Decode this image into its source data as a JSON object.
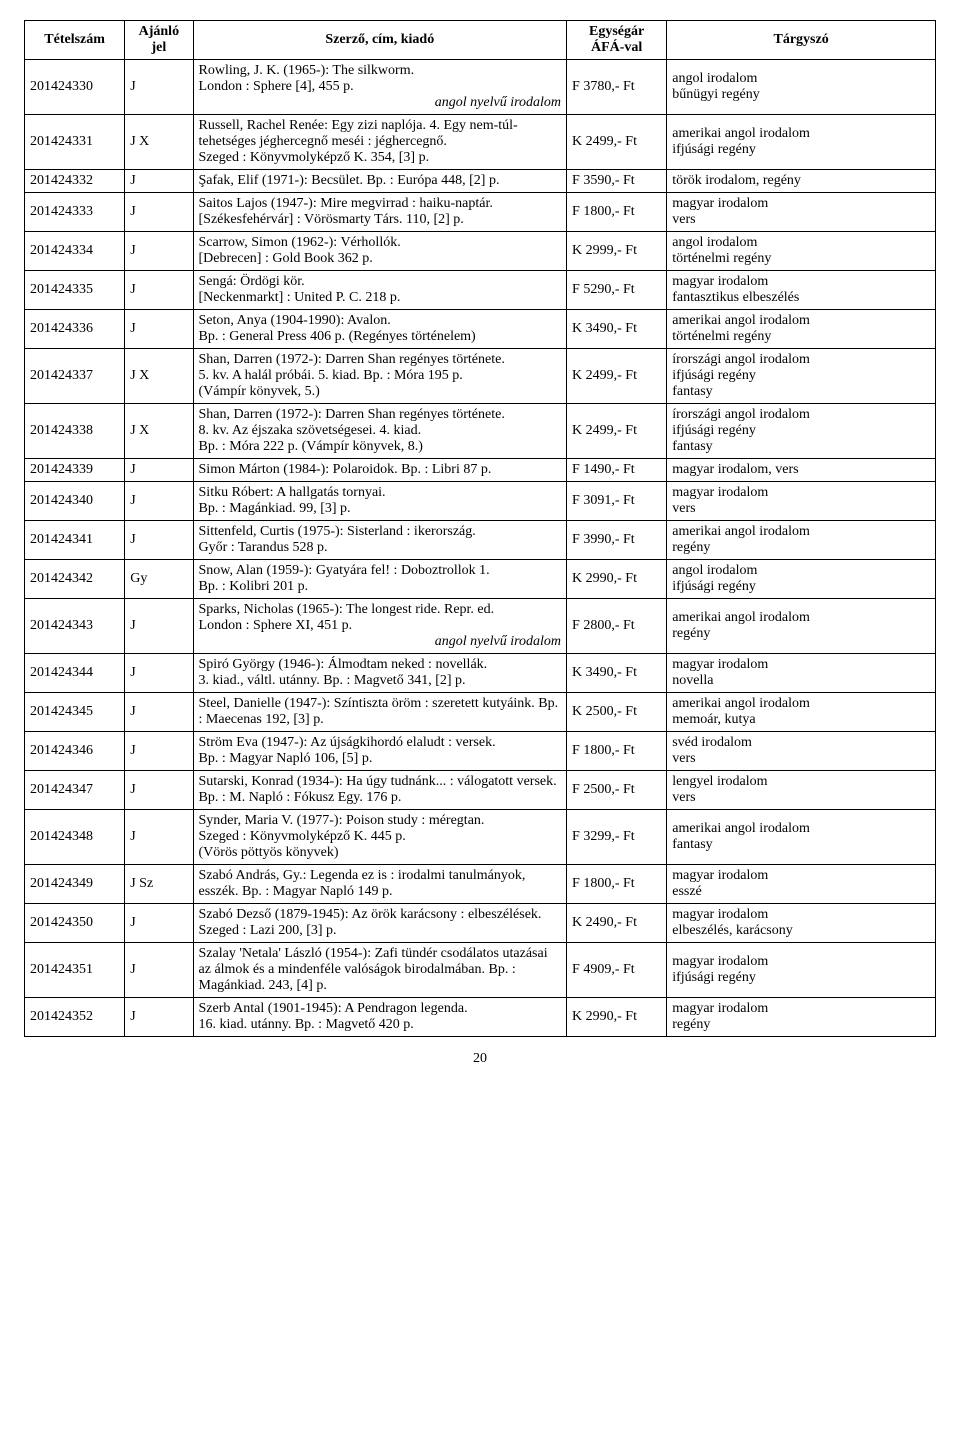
{
  "headers": {
    "id": "Tételszám",
    "code": "Ajánló jel",
    "desc": "Szerző, cím, kiadó",
    "price": "Egységár ÁFÁ-val",
    "tags": "Tárgyszó"
  },
  "rows": [
    {
      "id": "201424330",
      "code": "J",
      "desc": "Rowling, J. K. (1965-): The silkworm.\nLondon : Sphere [4], 455 p.",
      "descSuffix": "angol nyelvű irodalom",
      "price": "F 3780,- Ft",
      "tags": "angol irodalom\nbűnügyi regény"
    },
    {
      "id": "201424331",
      "code": "J X",
      "desc": "Russell, Rachel Renée: Egy zizi naplója. 4. Egy nem-túl-tehetséges jéghercegnő meséi : jéghercegnő.\nSzeged : Könyvmolyképző K. 354, [3] p.",
      "price": "K 2499,- Ft",
      "tags": "amerikai angol irodalom\nifjúsági regény"
    },
    {
      "id": "201424332",
      "code": "J",
      "desc": "Şafak, Elif (1971-): Becsület. Bp. : Európa 448, [2] p.",
      "price": "F 3590,- Ft",
      "tags": "török irodalom, regény"
    },
    {
      "id": "201424333",
      "code": "J",
      "desc": "Saitos Lajos (1947-): Mire megvirrad : haiku-naptár.\n[Székesfehérvár] : Vörösmarty Társ. 110, [2] p.",
      "price": "F 1800,- Ft",
      "tags": "magyar irodalom\nvers"
    },
    {
      "id": "201424334",
      "code": "J",
      "desc": "Scarrow, Simon (1962-): Vérhollók.\n[Debrecen] : Gold Book 362 p.",
      "price": "K 2999,- Ft",
      "tags": "angol irodalom\ntörténelmi regény"
    },
    {
      "id": "201424335",
      "code": "J",
      "desc": "Sengá: Ördögi kör.\n[Neckenmarkt] : United P. C. 218 p.",
      "price": "F 5290,- Ft",
      "tags": "magyar irodalom\nfantasztikus elbeszélés"
    },
    {
      "id": "201424336",
      "code": "J",
      "desc": "Seton, Anya (1904-1990): Avalon.\nBp. : General Press 406 p. (Regényes történelem)",
      "price": "K 3490,- Ft",
      "tags": "amerikai angol irodalom\ntörténelmi regény"
    },
    {
      "id": "201424337",
      "code": "J X",
      "desc": "Shan, Darren (1972-): Darren Shan regényes története.\n5. kv. A halál próbái. 5. kiad. Bp. : Móra 195 p.\n(Vámpír könyvek, 5.)",
      "price": "K 2499,- Ft",
      "tags": "írországi angol irodalom\nifjúsági regény\nfantasy"
    },
    {
      "id": "201424338",
      "code": "J X",
      "desc": "Shan, Darren (1972-): Darren Shan regényes története.\n8. kv. Az éjszaka szövetségesei. 4. kiad.\nBp. : Móra 222 p. (Vámpír könyvek, 8.)",
      "price": "K 2499,- Ft",
      "tags": "írországi angol irodalom\nifjúsági regény\nfantasy"
    },
    {
      "id": "201424339",
      "code": "J",
      "desc": "Simon Márton (1984-): Polaroidok. Bp. : Libri 87 p.",
      "price": "F 1490,- Ft",
      "tags": "magyar irodalom, vers"
    },
    {
      "id": "201424340",
      "code": "J",
      "desc": "Sitku Róbert: A hallgatás tornyai.\nBp. : Magánkiad. 99, [3] p.",
      "price": "F 3091,- Ft",
      "tags": "magyar irodalom\nvers"
    },
    {
      "id": "201424341",
      "code": "J",
      "desc": "Sittenfeld, Curtis (1975-): Sisterland : ikerország.\nGyőr : Tarandus 528 p.",
      "price": "F 3990,- Ft",
      "tags": "amerikai angol irodalom\nregény"
    },
    {
      "id": "201424342",
      "code": "Gy",
      "desc": "Snow, Alan (1959-): Gyatyára fel! : Doboztrollok 1.\nBp. : Kolibri 201 p.",
      "price": "K 2990,- Ft",
      "tags": "angol irodalom\nifjúsági regény"
    },
    {
      "id": "201424343",
      "code": "J",
      "desc": "Sparks, Nicholas (1965-): The longest ride. Repr. ed.\nLondon : Sphere XI, 451 p.",
      "descSuffix": "angol nyelvű irodalom",
      "price": "F 2800,- Ft",
      "tags": "amerikai angol irodalom\nregény"
    },
    {
      "id": "201424344",
      "code": "J",
      "desc": "Spiró György (1946-): Álmodtam neked : novellák.\n3. kiad., váltl. utánny. Bp. : Magvető 341, [2] p.",
      "price": "K 3490,- Ft",
      "tags": "magyar irodalom\nnovella"
    },
    {
      "id": "201424345",
      "code": "J",
      "desc": "Steel, Danielle (1947-): Színtiszta öröm : szeretett kutyáink. Bp. : Maecenas 192, [3] p.",
      "price": "K 2500,- Ft",
      "tags": "amerikai angol irodalom\nmemoár, kutya"
    },
    {
      "id": "201424346",
      "code": "J",
      "desc": "Ström Eva (1947-): Az újságkihordó elaludt : versek.\nBp. : Magyar Napló 106, [5] p.",
      "price": "F 1800,- Ft",
      "tags": "svéd irodalom\nvers"
    },
    {
      "id": "201424347",
      "code": "J",
      "desc": "Sutarski, Konrad (1934-): Ha úgy tudnánk... : válogatott versek. Bp. : M. Napló : Fókusz Egy. 176 p.",
      "price": "F 2500,- Ft",
      "tags": "lengyel irodalom\nvers"
    },
    {
      "id": "201424348",
      "code": "J",
      "desc": "Synder, Maria V. (1977-): Poison study : méregtan.\nSzeged : Könyvmolyképző K. 445 p.\n(Vörös pöttyös könyvek)",
      "price": "F 3299,- Ft",
      "tags": "amerikai angol irodalom\nfantasy"
    },
    {
      "id": "201424349",
      "code": "J Sz",
      "desc": "Szabó András, Gy.: Legenda ez is : irodalmi tanulmányok, esszék. Bp. : Magyar Napló 149 p.",
      "price": "F 1800,- Ft",
      "tags": "magyar irodalom\nesszé"
    },
    {
      "id": "201424350",
      "code": "J",
      "desc": "Szabó Dezső (1879-1945): Az örök karácsony : elbeszélések. Szeged : Lazi 200, [3] p.",
      "price": "K 2490,- Ft",
      "tags": "magyar irodalom\nelbeszélés, karácsony"
    },
    {
      "id": "201424351",
      "code": "J",
      "desc": "Szalay 'Netala' László (1954-): Zafi tündér csodálatos utazásai az álmok és a mindenféle valóságok birodalmában. Bp. : Magánkiad. 243, [4] p.",
      "price": "F 4909,- Ft",
      "tags": "magyar irodalom\nifjúsági regény"
    },
    {
      "id": "201424352",
      "code": "J",
      "desc": "Szerb Antal (1901-1945): A Pendragon legenda.\n16. kiad. utánny. Bp. : Magvető 420 p.",
      "price": "K 2990,- Ft",
      "tags": "magyar irodalom\nregény"
    }
  ],
  "pageNumber": "20"
}
